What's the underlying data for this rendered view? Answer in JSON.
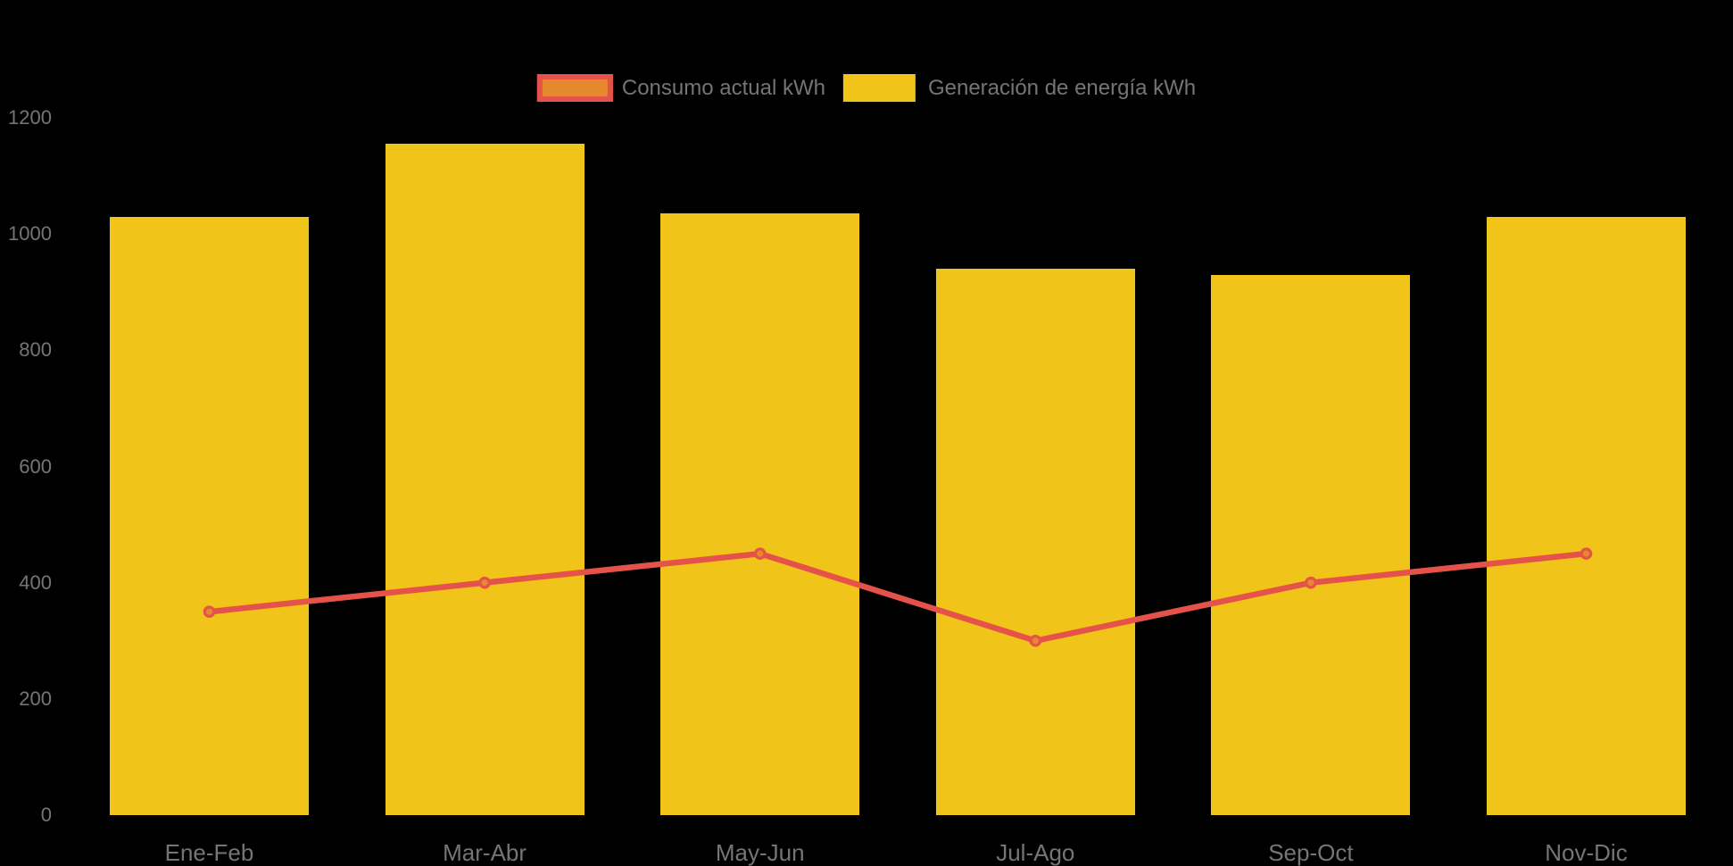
{
  "background_color": "#000000",
  "text_color": "#757575",
  "legend": {
    "items": [
      {
        "label": "Consumo actual kWh",
        "swatch_fill": "#e6882e",
        "swatch_border": "#e5524a"
      },
      {
        "label": "Generación de energía kWh",
        "swatch_fill": "#f0c419",
        "swatch_border": null
      }
    ]
  },
  "chart_data": {
    "type": "bar",
    "subtype": "bar-line-combo",
    "title": "",
    "xlabel": "",
    "ylabel": "",
    "categories": [
      "Ene-Feb",
      "Mar-Abr",
      "May-Jun",
      "Jul-Ago",
      "Sep-Oct",
      "Nov-Dic"
    ],
    "series": [
      {
        "name": "Consumo actual kWh",
        "type": "line",
        "line_color": "#e5524a",
        "marker_fill": "#e6882e",
        "marker_stroke": "#e5524a",
        "values": [
          350,
          400,
          450,
          300,
          400,
          450
        ]
      },
      {
        "name": "Generación de energía kWh",
        "type": "bar",
        "color": "#f0c419",
        "values": [
          1030,
          1155,
          1035,
          940,
          930,
          1030
        ]
      }
    ],
    "ylim": [
      0,
      1200
    ],
    "yticks": [
      0,
      200,
      400,
      600,
      800,
      1000,
      1200
    ],
    "ytick_labels": [
      "0",
      "200",
      "400",
      "600",
      "800",
      "1000",
      "1200"
    ],
    "grid": false,
    "legend_position": "top-center"
  }
}
